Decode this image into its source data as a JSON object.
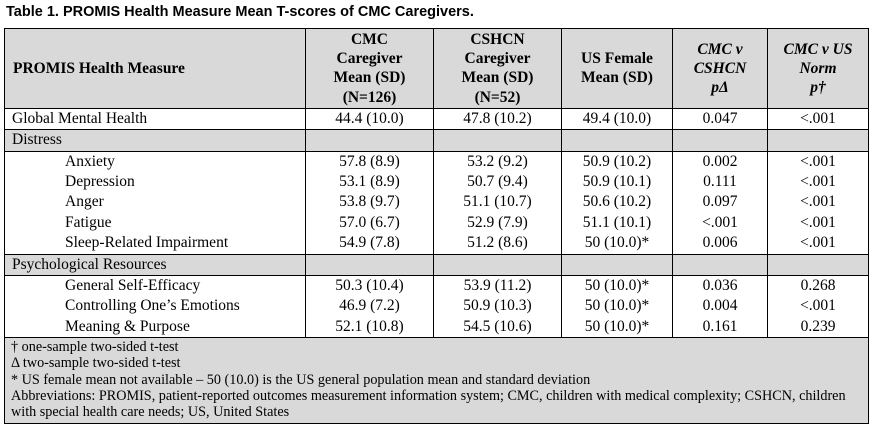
{
  "caption": "Table 1. PROMIS Health Measure Mean T-scores of CMC Caregivers.",
  "headers": {
    "measure": "PROMIS Health Measure",
    "cmc": [
      "CMC",
      "Caregiver",
      "Mean (SD)",
      "(N=126)"
    ],
    "cshcn": [
      "CSHCN",
      "Caregiver",
      "Mean (SD)",
      "(N=52)"
    ],
    "us": [
      "US Female",
      "Mean (SD)"
    ],
    "cmc_v_cshcn": [
      "CMC v",
      "CSHCN",
      "pΔ"
    ],
    "cmc_v_us": [
      "CMC v US",
      "Norm",
      "p†"
    ]
  },
  "global": {
    "label": "Global Mental Health",
    "cmc": "44.4 (10.0)",
    "cshcn": "47.8 (10.2)",
    "us": "49.4 (10.0)",
    "p1": "0.047",
    "p2": "<.001"
  },
  "distress": {
    "label": "Distress",
    "rows": [
      {
        "label": "Anxiety",
        "cmc": "57.8 (8.9)",
        "cshcn": "53.2 (9.2)",
        "us": "50.9 (10.2)",
        "p1": "0.002",
        "p2": "<.001"
      },
      {
        "label": "Depression",
        "cmc": "53.1 (8.9)",
        "cshcn": "50.7 (9.4)",
        "us": "50.9 (10.1)",
        "p1": "0.111",
        "p2": "<.001"
      },
      {
        "label": "Anger",
        "cmc": "53.8 (9.7)",
        "cshcn": "51.1 (10.7)",
        "us": "50.6 (10.2)",
        "p1": "0.097",
        "p2": "<.001"
      },
      {
        "label": "Fatigue",
        "cmc": "57.0 (6.7)",
        "cshcn": "52.9 (7.9)",
        "us": "51.1 (10.1)",
        "p1": "<.001",
        "p2": "<.001"
      },
      {
        "label": "Sleep-Related Impairment",
        "cmc": "54.9 (7.8)",
        "cshcn": "51.2 (8.6)",
        "us": "50 (10.0)*",
        "p1": "0.006",
        "p2": "<.001"
      }
    ]
  },
  "resources": {
    "label": "Psychological Resources",
    "rows": [
      {
        "label": "General Self-Efficacy",
        "cmc": "50.3 (10.4)",
        "cshcn": "53.9 (11.2)",
        "us": "50 (10.0)*",
        "p1": "0.036",
        "p2": "0.268"
      },
      {
        "label": "Controlling One’s Emotions",
        "cmc": "46.9 (7.2)",
        "cshcn": "50.9 (10.3)",
        "us": "50 (10.0)*",
        "p1": "0.004",
        "p2": "<.001"
      },
      {
        "label": "Meaning & Purpose",
        "cmc": "52.1 (10.8)",
        "cshcn": "54.5 (10.6)",
        "us": "50 (10.0)*",
        "p1": "0.161",
        "p2": "0.239"
      }
    ]
  },
  "footnotes": [
    "† one-sample two-sided t-test",
    "Δ two-sample two-sided t-test",
    "* US female mean not available – 50 (10.0) is the US general population mean and standard deviation",
    "Abbreviations: PROMIS, patient-reported outcomes measurement information system; CMC, children with medical complexity; CSHCN, children with special health care needs; US, United States"
  ]
}
